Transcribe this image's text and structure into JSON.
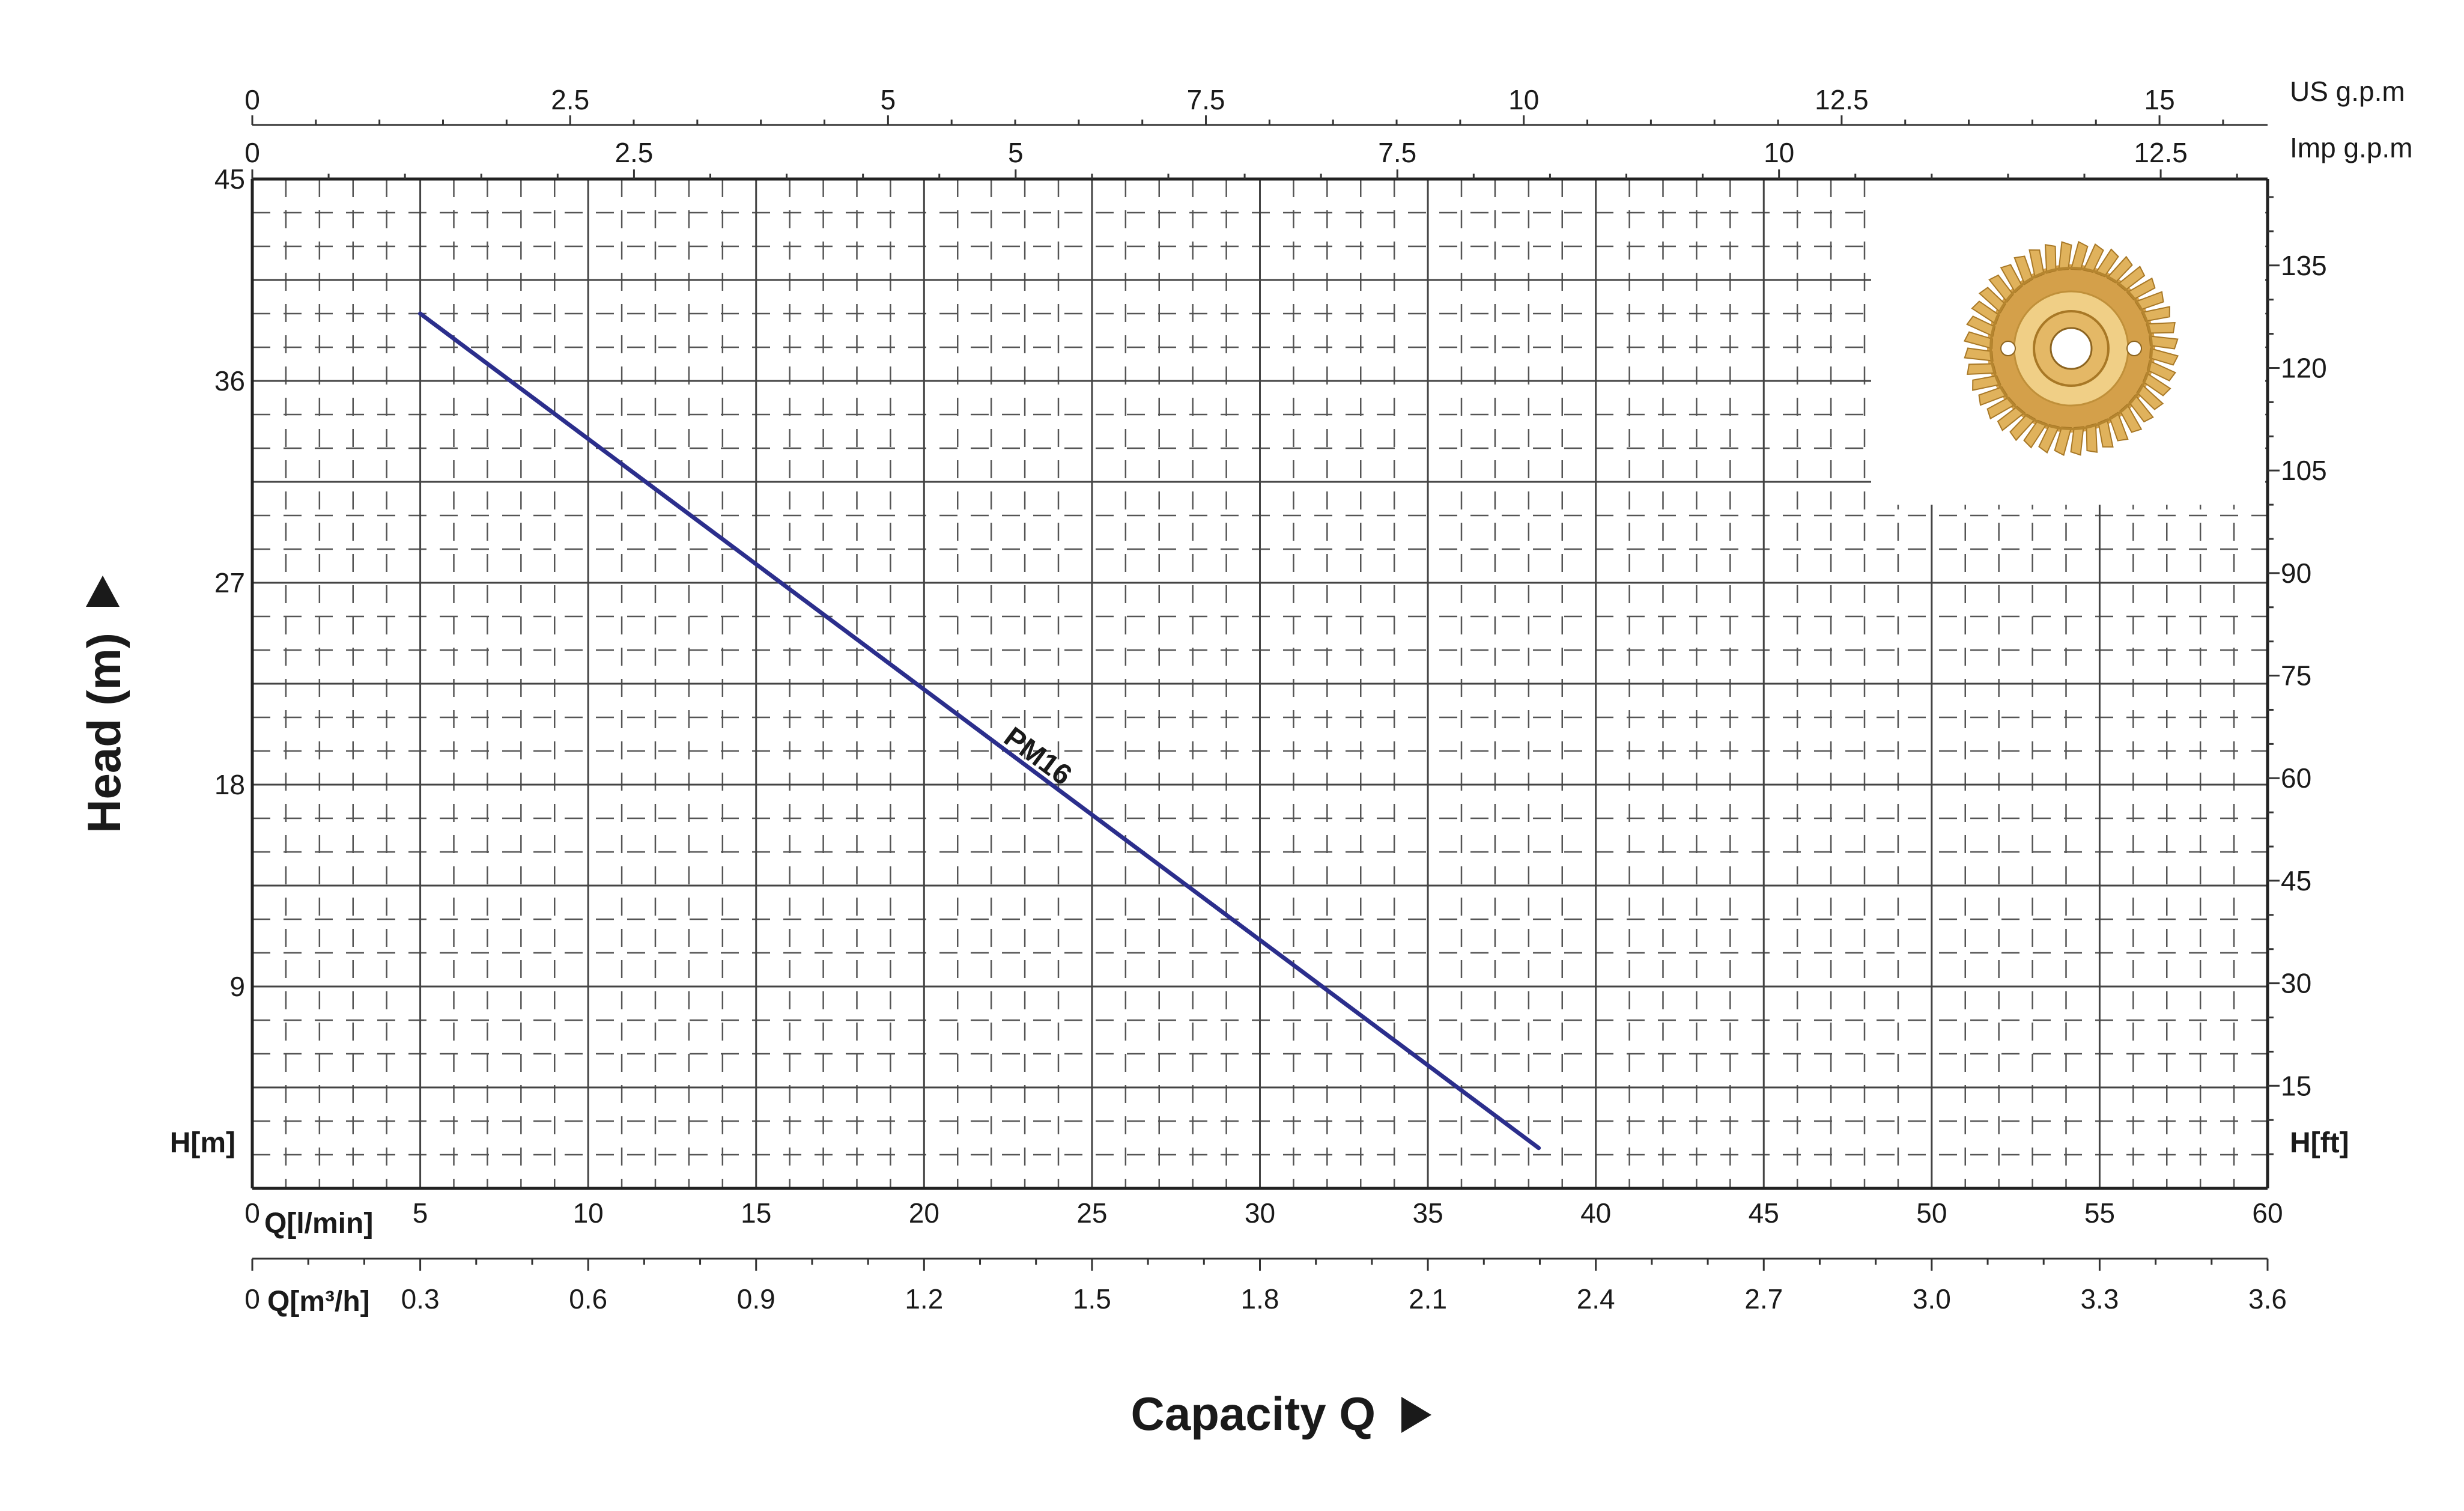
{
  "colors": {
    "curve": "#2b2e8c",
    "grid": "#444444",
    "text": "#1a1a1a",
    "impeller": "#d9a441"
  },
  "icons": {
    "impeller": "brass-impeller-icon",
    "x_arrow": "right-triangle-arrow-icon",
    "y_arrow": "up-triangle-arrow-icon"
  },
  "chart_data": {
    "type": "line",
    "title": "",
    "xlabel": "Capacity Q",
    "ylabel": "Head (m)",
    "xlim": [
      0,
      60
    ],
    "ylim": [
      0,
      45
    ],
    "grid": true,
    "x_axis": {
      "unit_label": "Q[l/min]",
      "origin_label": "0",
      "ticks": [
        "5",
        "10",
        "15",
        "20",
        "25",
        "30",
        "35",
        "40",
        "45",
        "50",
        "55",
        "60"
      ]
    },
    "x_axis_m3h": {
      "unit_label": "Q[m³/h]",
      "origin_label": "0",
      "ticks": [
        "0.3",
        "0.6",
        "0.9",
        "1.2",
        "1.5",
        "1.8",
        "2.1",
        "2.4",
        "2.7",
        "3.0",
        "3.3",
        "3.6"
      ]
    },
    "x_axis_us_gpm": {
      "unit_label": "US g.p.m",
      "ticks": [
        "0",
        "2.5",
        "5",
        "7.5",
        "10",
        "12.5",
        "15"
      ]
    },
    "x_axis_imp_gpm": {
      "unit_label": "Imp g.p.m",
      "ticks": [
        "0",
        "2.5",
        "5",
        "7.5",
        "10",
        "12.5"
      ]
    },
    "y_axis": {
      "unit_label": "H[m]",
      "ticks": [
        "9",
        "18",
        "27",
        "36",
        "45"
      ]
    },
    "y_axis_ft": {
      "unit_label": "H[ft]",
      "ticks": [
        "15",
        "30",
        "45",
        "60",
        "75",
        "90",
        "105",
        "120",
        "135"
      ]
    },
    "series": [
      {
        "name": "PM16",
        "x": [
          5,
          38.3
        ],
        "y": [
          39,
          1.8
        ]
      }
    ]
  }
}
